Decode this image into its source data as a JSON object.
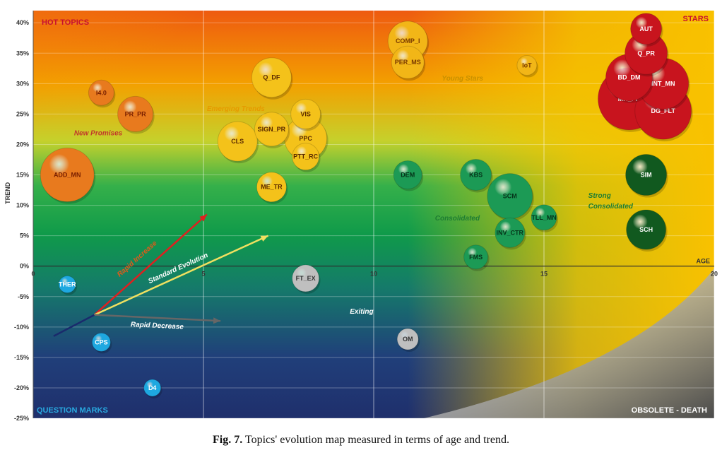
{
  "caption": {
    "label": "Fig. 7.",
    "text": "Topics' evolution map measured in terms of age and trend."
  },
  "chart_data": {
    "type": "scatter",
    "subtype": "bubble",
    "xlabel": "AGE",
    "ylabel": "TREND",
    "xlim": [
      0,
      20
    ],
    "ylim": [
      -25,
      42
    ],
    "x_ticks": [
      {
        "value": 0,
        "label": "0"
      },
      {
        "value": 5,
        "label": "5"
      },
      {
        "value": 10,
        "label": "10"
      },
      {
        "value": 15,
        "label": "15"
      },
      {
        "value": 20,
        "label": "20"
      }
    ],
    "y_ticks": [
      {
        "value": 40,
        "label": "40%"
      },
      {
        "value": 35,
        "label": "35%"
      },
      {
        "value": 30,
        "label": "30%"
      },
      {
        "value": 25,
        "label": "25%"
      },
      {
        "value": 20,
        "label": "20%"
      },
      {
        "value": 15,
        "label": "15%"
      },
      {
        "value": 10,
        "label": "10%"
      },
      {
        "value": 5,
        "label": "5%"
      },
      {
        "value": 0,
        "label": "0%"
      },
      {
        "value": -5,
        "label": "-5%"
      },
      {
        "value": -10,
        "label": "-10%"
      },
      {
        "value": -15,
        "label": "-15%"
      },
      {
        "value": -20,
        "label": "-20%"
      },
      {
        "value": -25,
        "label": "-25%"
      }
    ],
    "grid": true,
    "quadrant_labels": [
      {
        "text": "HOT TOPICS",
        "position": "top-left",
        "color": "#c8102e"
      },
      {
        "text": "STARS",
        "position": "top-right",
        "color": "#c8102e"
      },
      {
        "text": "QUESTION MARKS",
        "position": "bottom-left",
        "color": "#29a9e0"
      },
      {
        "text": "OBSOLETE - DEATH",
        "position": "bottom-right",
        "color": "#ffffff"
      }
    ],
    "annotations": [
      {
        "text": "New Promises",
        "x": 1.2,
        "y": 21.5,
        "color": "#c0392b"
      },
      {
        "text": "Emerging Trends",
        "x": 5.1,
        "y": 25.5,
        "color": "#e69a00"
      },
      {
        "text": "Young Stars",
        "x": 12.0,
        "y": 30.5,
        "color": "#c89000"
      },
      {
        "text": "Consolidated",
        "x": 11.8,
        "y": 7.5,
        "color": "#1e7d32"
      },
      {
        "text": "Strong",
        "x": 16.3,
        "y": 11.2,
        "color": "#1e7d32"
      },
      {
        "text": "Consolidated",
        "x": 16.3,
        "y": 9.5,
        "color": "#1e7d32"
      },
      {
        "text": "Exiting",
        "x": 9.3,
        "y": -7.8,
        "color": "#ffffff"
      }
    ],
    "trend_arrows": [
      {
        "label": "Rapid Increase",
        "from": [
          1.8,
          -8
        ],
        "to": [
          5.1,
          8.5
        ],
        "color": "#e01f1f",
        "label_color": "#e05a1a"
      },
      {
        "label": "Standard Evolution",
        "from": [
          1.8,
          -8
        ],
        "to": [
          6.9,
          5
        ],
        "color": "#f0e060",
        "label_color": "#ffffff"
      },
      {
        "label": "Rapid Decrease",
        "from": [
          1.8,
          -8
        ],
        "to": [
          5.5,
          -9
        ],
        "color": "#666666",
        "label_color": "#ffffff"
      }
    ],
    "bubbles": [
      {
        "label": "AUT",
        "x": 18.0,
        "y": 39.0,
        "size": 22,
        "group": "stars"
      },
      {
        "label": "Q_PR",
        "x": 18.0,
        "y": 35.0,
        "size": 30,
        "group": "stars"
      },
      {
        "label": "BD_DM",
        "x": 17.5,
        "y": 31.0,
        "size": 33,
        "group": "stars"
      },
      {
        "label": "INT_MN",
        "x": 18.5,
        "y": 30.0,
        "size": 36,
        "group": "stars"
      },
      {
        "label": "MN_PR",
        "x": 17.5,
        "y": 27.5,
        "size": 44,
        "group": "stars"
      },
      {
        "label": "DG_FLT",
        "x": 18.5,
        "y": 25.5,
        "size": 40,
        "group": "stars"
      },
      {
        "label": "COMP_I",
        "x": 11.0,
        "y": 37.0,
        "size": 28,
        "group": "young"
      },
      {
        "label": "PER_MS",
        "x": 11.0,
        "y": 33.5,
        "size": 23,
        "group": "young"
      },
      {
        "label": "IoT",
        "x": 14.5,
        "y": 33.0,
        "size": 14,
        "group": "young"
      },
      {
        "label": "I4.0",
        "x": 2.0,
        "y": 28.5,
        "size": 18,
        "group": "promise"
      },
      {
        "label": "PR_PR",
        "x": 3.0,
        "y": 25.0,
        "size": 25,
        "group": "promise"
      },
      {
        "label": "ADD_MN",
        "x": 1.0,
        "y": 15.0,
        "size": 38,
        "group": "promise"
      },
      {
        "label": "Q_DF",
        "x": 7.0,
        "y": 31.0,
        "size": 28,
        "group": "emerging"
      },
      {
        "label": "VIS",
        "x": 8.0,
        "y": 25.0,
        "size": 21,
        "group": "emerging"
      },
      {
        "label": "SIGN_PR",
        "x": 7.0,
        "y": 22.5,
        "size": 24,
        "group": "emerging"
      },
      {
        "label": "PPC",
        "x": 8.0,
        "y": 21.0,
        "size": 30,
        "group": "emerging"
      },
      {
        "label": "CLS",
        "x": 6.0,
        "y": 20.5,
        "size": 28,
        "group": "emerging"
      },
      {
        "label": "PTT_RC",
        "x": 8.0,
        "y": 18.0,
        "size": 19,
        "group": "emerging"
      },
      {
        "label": "ME_TR",
        "x": 7.0,
        "y": 13.0,
        "size": 21,
        "group": "emerging"
      },
      {
        "label": "DEM",
        "x": 11.0,
        "y": 15.0,
        "size": 20,
        "group": "consolidated"
      },
      {
        "label": "KBS",
        "x": 13.0,
        "y": 15.0,
        "size": 22,
        "group": "consolidated"
      },
      {
        "label": "SCM",
        "x": 14.0,
        "y": 11.5,
        "size": 32,
        "group": "consolidated"
      },
      {
        "label": "TLL_MN",
        "x": 15.0,
        "y": 8.0,
        "size": 18,
        "group": "consolidated"
      },
      {
        "label": "INV_CTR",
        "x": 14.0,
        "y": 5.5,
        "size": 21,
        "group": "consolidated"
      },
      {
        "label": "FMS",
        "x": 13.0,
        "y": 1.5,
        "size": 17,
        "group": "consolidated"
      },
      {
        "label": "SIM",
        "x": 18.0,
        "y": 15.0,
        "size": 29,
        "group": "strong"
      },
      {
        "label": "SCH",
        "x": 18.0,
        "y": 6.0,
        "size": 28,
        "group": "strong"
      },
      {
        "label": "THER",
        "x": 1.0,
        "y": -3.0,
        "size": 12,
        "group": "question"
      },
      {
        "label": "CPS",
        "x": 2.0,
        "y": -12.5,
        "size": 13,
        "group": "question"
      },
      {
        "label": "D4",
        "x": 3.5,
        "y": -20.0,
        "size": 12,
        "group": "question"
      },
      {
        "label": "FT_EX",
        "x": 8.0,
        "y": -2.0,
        "size": 19,
        "group": "exiting"
      },
      {
        "label": "OM",
        "x": 11.0,
        "y": -12.0,
        "size": 15,
        "group": "exiting"
      }
    ],
    "group_colors": {
      "stars": "#c8141e",
      "young": "#f2b617",
      "promise": "#e87a1e",
      "emerging": "#f4c21a",
      "consolidated": "#1c9a55",
      "strong": "#11591f",
      "question": "#1ea8e0",
      "exiting": "#bfbfbf"
    },
    "group_label_colors": {
      "stars": "#ffffff",
      "young": "#7a3a00",
      "promise": "#7a2000",
      "emerging": "#5a2a00",
      "consolidated": "#053319",
      "strong": "#ffffff",
      "question": "#ffffff",
      "exiting": "#333333"
    }
  }
}
